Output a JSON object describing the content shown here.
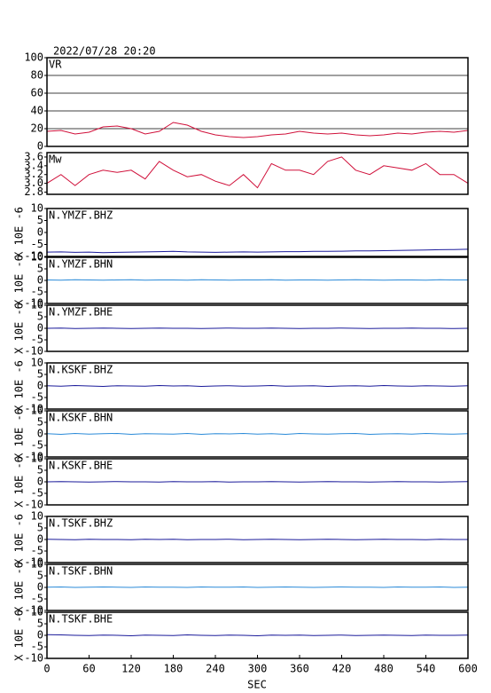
{
  "chart_data": {
    "type": "line",
    "title": "2022/07/28 20:20",
    "xlabel": "SEC",
    "xlim": [
      0,
      600
    ],
    "xticks": [
      0,
      60,
      120,
      180,
      240,
      300,
      360,
      420,
      480,
      540,
      600
    ],
    "x": [
      0,
      20,
      40,
      60,
      80,
      100,
      120,
      140,
      160,
      180,
      200,
      220,
      240,
      260,
      280,
      300,
      320,
      340,
      360,
      380,
      400,
      420,
      440,
      460,
      480,
      500,
      520,
      540,
      560,
      580,
      600
    ],
    "series": [
      {
        "name": "VR",
        "color": "#d0103a",
        "ylim": [
          0,
          100
        ],
        "yticks": [
          0,
          20,
          40,
          60,
          80,
          100
        ],
        "grid": true,
        "values": [
          17,
          18,
          14,
          16,
          22,
          23,
          20,
          14,
          17,
          27,
          24,
          17,
          13,
          11,
          10,
          11,
          13,
          14,
          17,
          15,
          14,
          15,
          13,
          12,
          13,
          15,
          14,
          16,
          17,
          16,
          18
        ]
      },
      {
        "name": "Mw",
        "color": "#d0103a",
        "ylim": [
          2.75,
          3.7
        ],
        "yticks": [
          2.8,
          {
            "value": 3,
            "label": "3.0"
          },
          3.2,
          3.4,
          3.6
        ],
        "grid": false,
        "values": [
          3.0,
          3.2,
          2.95,
          3.2,
          3.3,
          3.25,
          3.3,
          3.1,
          3.5,
          3.3,
          3.15,
          3.2,
          3.05,
          2.95,
          3.2,
          2.9,
          3.45,
          3.3,
          3.3,
          3.2,
          3.5,
          3.6,
          3.3,
          3.2,
          3.4,
          3.35,
          3.3,
          3.45,
          3.2,
          3.2,
          3.0
        ]
      },
      {
        "name": "N.YMZF.BHZ",
        "color": "#1a1a9a",
        "ylabel": "X 10E -6",
        "ylim": [
          -10,
          10
        ],
        "yticks": [
          -10,
          -5,
          0,
          5,
          10
        ],
        "grid": false,
        "values": [
          -8.2,
          -8.1,
          -8.3,
          -8.2,
          -8.4,
          -8.3,
          -8.2,
          -8.1,
          -8.0,
          -7.9,
          -8.1,
          -8.2,
          -8.3,
          -8.2,
          -8.1,
          -8.2,
          -8.1,
          -8.0,
          -8.0,
          -7.9,
          -7.9,
          -7.8,
          -7.7,
          -7.7,
          -7.6,
          -7.5,
          -7.4,
          -7.3,
          -7.2,
          -7.1,
          -7.0
        ]
      },
      {
        "name": "N.YMZF.BHN",
        "color": "#2a8ad8",
        "ylabel": "X 10E -6",
        "ylim": [
          -10,
          10
        ],
        "yticks": [
          -10,
          -5,
          0,
          5,
          10
        ],
        "grid": false,
        "values": [
          0.2,
          0.1,
          0.3,
          0.2,
          0.1,
          0.2,
          0.3,
          0.1,
          0.2,
          0.2,
          0.1,
          0.3,
          0.2,
          0.1,
          0.2,
          0.2,
          0.3,
          0.1,
          0.2,
          0.2,
          0.1,
          0.2,
          0.3,
          0.2,
          0.1,
          0.2,
          0.2,
          0.1,
          0.3,
          0.2,
          0.2
        ]
      },
      {
        "name": "N.YMZF.BHE",
        "color": "#1a1a9a",
        "ylabel": "X 10E -6",
        "ylim": [
          -10,
          10
        ],
        "yticks": [
          -10,
          -5,
          0,
          5,
          10
        ],
        "grid": false,
        "values": [
          0.0,
          0.1,
          -0.1,
          0.0,
          0.1,
          0.0,
          -0.1,
          0.0,
          0.1,
          0.0,
          0.0,
          -0.1,
          0.0,
          0.1,
          0.0,
          0.0,
          0.1,
          0.0,
          -0.1,
          0.0,
          0.0,
          0.1,
          0.0,
          -0.1,
          0.0,
          0.0,
          0.1,
          0.0,
          0.0,
          -0.1,
          0.0
        ]
      },
      {
        "name": "N.KSKF.BHZ",
        "color": "#1a1a9a",
        "ylabel": "X 10E -6",
        "ylim": [
          -10,
          10
        ],
        "yticks": [
          -10,
          -5,
          0,
          5,
          10
        ],
        "grid": false,
        "values": [
          0.1,
          -0.1,
          0.2,
          0.0,
          -0.2,
          0.1,
          0.0,
          -0.1,
          0.2,
          0.0,
          0.1,
          -0.2,
          0.0,
          0.1,
          -0.1,
          0.0,
          0.2,
          -0.1,
          0.0,
          0.1,
          -0.2,
          0.0,
          0.1,
          -0.1,
          0.2,
          0.0,
          -0.1,
          0.1,
          0.0,
          -0.1,
          0.1
        ]
      },
      {
        "name": "N.KSKF.BHN",
        "color": "#2a8ad8",
        "ylabel": "X 10E -6",
        "ylim": [
          -10,
          10
        ],
        "yticks": [
          -10,
          -5,
          0,
          5,
          10
        ],
        "grid": false,
        "values": [
          0.1,
          -0.2,
          0.2,
          -0.1,
          0.1,
          0.2,
          -0.2,
          0.1,
          0.0,
          -0.1,
          0.2,
          -0.2,
          0.1,
          0.0,
          0.2,
          -0.1,
          0.1,
          -0.2,
          0.2,
          0.0,
          -0.1,
          0.1,
          0.2,
          -0.2,
          0.0,
          0.1,
          -0.1,
          0.2,
          0.0,
          -0.1,
          0.1
        ]
      },
      {
        "name": "N.KSKF.BHE",
        "color": "#1a1a9a",
        "ylabel": "X 10E -6",
        "ylim": [
          -10,
          10
        ],
        "yticks": [
          -10,
          -5,
          0,
          5,
          10
        ],
        "grid": false,
        "values": [
          0.0,
          0.1,
          0.0,
          -0.1,
          0.0,
          0.1,
          0.0,
          0.0,
          -0.1,
          0.1,
          0.0,
          0.0,
          0.1,
          -0.1,
          0.0,
          0.0,
          0.1,
          0.0,
          -0.1,
          0.0,
          0.1,
          0.0,
          0.0,
          -0.1,
          0.0,
          0.1,
          0.0,
          0.0,
          -0.1,
          0.0,
          0.1
        ]
      },
      {
        "name": "N.TSKF.BHZ",
        "color": "#1a1a9a",
        "ylabel": "X 10E -6",
        "ylim": [
          -10,
          10
        ],
        "yticks": [
          -10,
          -5,
          0,
          5,
          10
        ],
        "grid": false,
        "values": [
          0.1,
          0.0,
          -0.1,
          0.1,
          0.0,
          0.0,
          -0.1,
          0.1,
          0.0,
          0.1,
          -0.1,
          0.0,
          0.0,
          0.1,
          -0.1,
          0.0,
          0.1,
          0.0,
          -0.1,
          0.0,
          0.1,
          0.0,
          -0.1,
          0.0,
          0.1,
          0.0,
          0.0,
          -0.1,
          0.1,
          0.0,
          0.0
        ]
      },
      {
        "name": "N.TSKF.BHN",
        "color": "#2a8ad8",
        "ylabel": "X 10E -6",
        "ylim": [
          -10,
          10
        ],
        "yticks": [
          -10,
          -5,
          0,
          5,
          10
        ],
        "grid": false,
        "values": [
          0.1,
          0.2,
          0.0,
          0.1,
          0.2,
          0.1,
          0.0,
          0.2,
          0.1,
          0.1,
          0.0,
          0.2,
          0.1,
          0.1,
          0.2,
          0.0,
          0.1,
          0.2,
          0.1,
          0.0,
          0.1,
          0.2,
          0.1,
          0.1,
          0.0,
          0.2,
          0.1,
          0.1,
          0.2,
          0.0,
          0.1
        ]
      },
      {
        "name": "N.TSKF.BHE",
        "color": "#1a1a9a",
        "ylabel": "X 10E -6",
        "ylim": [
          -10,
          10
        ],
        "yticks": [
          -10,
          -5,
          0,
          5,
          10
        ],
        "grid": false,
        "values": [
          0.3,
          0.2,
          0.0,
          -0.1,
          0.1,
          0.0,
          -0.2,
          0.1,
          0.0,
          -0.1,
          0.2,
          0.0,
          -0.1,
          0.1,
          0.0,
          -0.2,
          0.1,
          0.0,
          0.1,
          -0.1,
          0.0,
          0.1,
          -0.1,
          0.0,
          0.1,
          0.0,
          -0.1,
          0.1,
          0.0,
          0.0,
          0.1
        ]
      }
    ]
  }
}
